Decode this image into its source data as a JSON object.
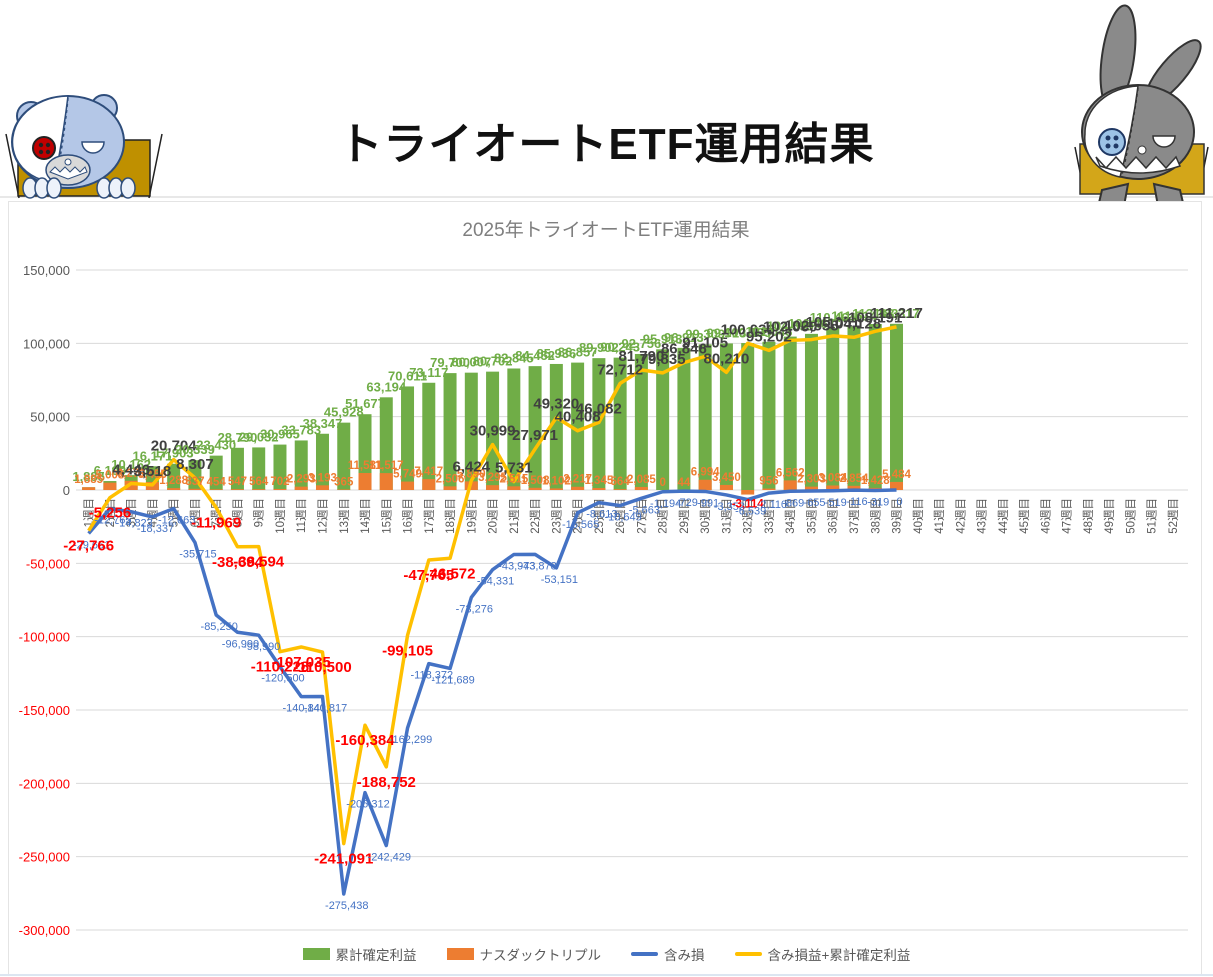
{
  "page": {
    "title": "トライオートETF運用結果"
  },
  "chart": {
    "title": "2025年トライオートETF運用結果",
    "legend": [
      {
        "label": "累計確定利益",
        "type": "bar",
        "color": "#70AD47"
      },
      {
        "label": "ナスダックトリプル",
        "type": "bar",
        "color": "#ED7D31"
      },
      {
        "label": "含み損",
        "type": "line",
        "color": "#4472C4"
      },
      {
        "label": "含み損益+累計確定利益",
        "type": "line",
        "color": "#FFC000"
      }
    ],
    "colors": {
      "grid": "#D9D9D9",
      "axis_text": "#595959",
      "axis_text_negative": "#FF0000",
      "label_positive": "#404040",
      "label_negative": "#FF0000",
      "label_green": "#70AD47",
      "label_orange": "#ED7D31",
      "label_blue": "#4472C4",
      "frame": "#E4E4E4"
    }
  },
  "chart_data": {
    "type": "combo",
    "title": "2025年トライオートETF運用結果",
    "xlabel": "",
    "ylabel": "",
    "ylim": [
      -300000,
      150000
    ],
    "ytick_step": 50000,
    "grid": true,
    "legend_position": "bottom",
    "categories": [
      "1週目",
      "2週目",
      "3週目",
      "4週目",
      "5週目",
      "6週目",
      "7週目",
      "8週目",
      "9週目",
      "10週目",
      "11週目",
      "12週目",
      "13週目",
      "14週目",
      "15週目",
      "16週目",
      "17週目",
      "18週目",
      "19週目",
      "20週目",
      "21週目",
      "22週目",
      "23週目",
      "24週目",
      "25週目",
      "26週目",
      "27週目",
      "28週目",
      "29週目",
      "30週目",
      "31週目",
      "32週目",
      "33週目",
      "34週目",
      "35週目",
      "36週目",
      "37週目",
      "38週目",
      "39週目",
      "40週目",
      "41週目",
      "42週目",
      "43週目",
      "44週目",
      "45週目",
      "46週目",
      "47週目",
      "48週目",
      "49週目",
      "50週目",
      "51週目",
      "52週目"
    ],
    "series": [
      {
        "name": "累計確定利益",
        "type": "bar",
        "color": "#70AD47",
        "values": [
          1885,
          6109,
          10162,
          16171,
          17903,
          20339,
          23430,
          28790,
          29032,
          30965,
          33783,
          38347,
          45928,
          51677,
          63194,
          70611,
          73117,
          79700,
          80007,
          80702,
          82845,
          84452,
          85936,
          86857,
          89902,
          90243,
          92756,
          95913,
          96913,
          99309,
          99913,
          100195,
          101043,
          104599,
          106461,
          110464,
          111514,
          113183,
          113317
        ]
      },
      {
        "name": "ナスダックトリプル",
        "type": "bar",
        "color": "#ED7D31",
        "values": [
          1885,
          5008,
          6273,
          5455,
          1288,
          837,
          454,
          547,
          564,
          702,
          2293,
          3193,
          365,
          11581,
          11517,
          5749,
          7417,
          2506,
          5890,
          3295,
          2515,
          1508,
          1102,
          2217,
          1345,
          564,
          2085,
          0,
          44,
          6994,
          3450,
          -3114,
          956,
          6562,
          2303,
          3084,
          2854,
          1428,
          5484
        ]
      },
      {
        "name": "含み損",
        "type": "line",
        "color": "#4472C4",
        "values": [
          -29651,
          -12765,
          -14823,
          -18337,
          -12663,
          -35715,
          -85250,
          -96990,
          -98990,
          -120500,
          -140840,
          -140817,
          -275438,
          -206312,
          -242429,
          -162299,
          -118372,
          -121689,
          -73276,
          -54331,
          -43973,
          -43878,
          -53151,
          -15565,
          -8613,
          -10649,
          -5663,
          -1194,
          -729,
          -991,
          -3353,
          -6539,
          -2110,
          -869,
          -655,
          -519,
          -116,
          -319,
          0
        ]
      },
      {
        "name": "含み損益+累計確定利益",
        "type": "line",
        "color": "#FFC000",
        "values": [
          -27766,
          -5256,
          4446,
          3518,
          20704,
          8307,
          -11969,
          -38694,
          -38594,
          -110228,
          -107035,
          -110500,
          -241091,
          -160384,
          -188752,
          -99105,
          -47765,
          -46572,
          6424,
          30999,
          5731,
          27971,
          49320,
          40408,
          46082,
          72712,
          81790,
          79835,
          86846,
          91105,
          80210,
          100036,
          95202,
          102060,
          102558,
          105051,
          104128,
          108191,
          111217
        ]
      }
    ],
    "y_ticks": [
      150000,
      100000,
      50000,
      0,
      -50000,
      -100000,
      -150000,
      -200000,
      -250000,
      -300000
    ]
  },
  "mascots": {
    "left": "bear-plush",
    "right": "rabbit-plush"
  }
}
